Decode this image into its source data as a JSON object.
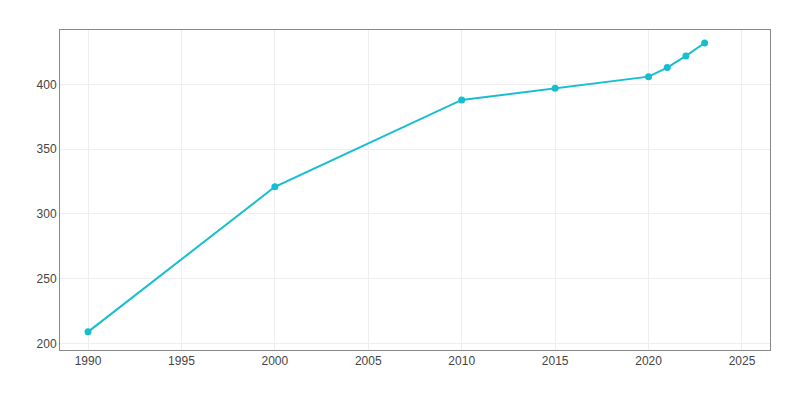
{
  "chart_data": {
    "type": "line",
    "x": [
      1990,
      2000,
      2010,
      2015,
      2020,
      2021,
      2022,
      2023
    ],
    "values": [
      209,
      321,
      388,
      397,
      406,
      413,
      422,
      432
    ],
    "color": "#17becf",
    "marker": "circle",
    "xlim": [
      1988.5,
      2026.5
    ],
    "ylim": [
      195,
      442
    ],
    "xticks": [
      1990,
      1995,
      2000,
      2005,
      2010,
      2015,
      2020,
      2025
    ],
    "yticks": [
      200,
      250,
      300,
      350,
      400
    ],
    "grid": true
  }
}
